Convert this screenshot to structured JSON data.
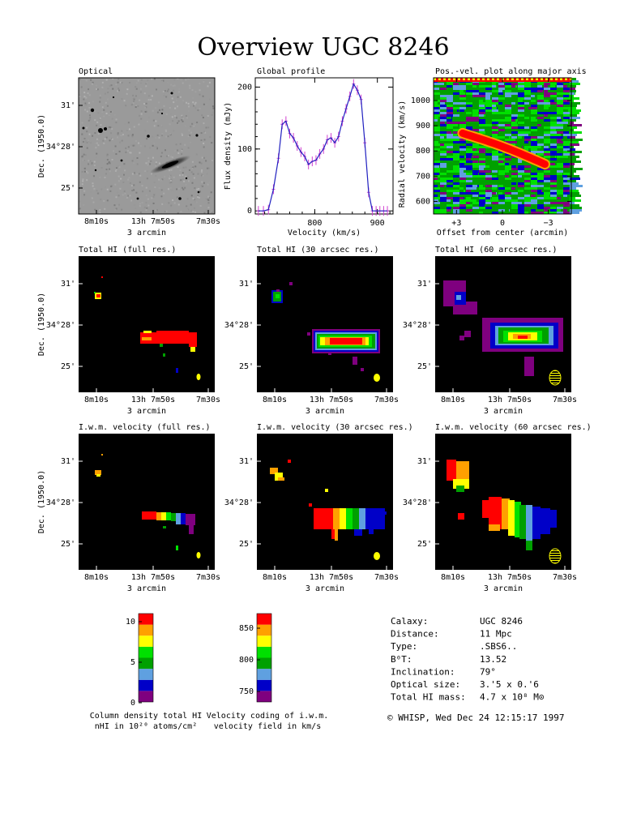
{
  "page": {
    "title": "Overview UGC 8246",
    "footer": "© WHISP, Wed Dec 24 12:15:17 1997"
  },
  "galaxy_info": [
    {
      "key": "Calaxy:",
      "value": "UGC 8246"
    },
    {
      "key": "Distance:",
      "value": "11 Mpc"
    },
    {
      "key": "Type:",
      "value": ".SBS6.."
    },
    {
      "key": "B⁰T:",
      "value": "13.52"
    },
    {
      "key": "Inclination:",
      "value": "79°"
    },
    {
      "key": "Optical size:",
      "value": "3.'5 x 0.'6"
    },
    {
      "key": "Total HI mass:",
      "value": "4.7 x 10⁸ M⊙"
    }
  ],
  "sky_axes": {
    "ylabel": "Dec. (1950.0)",
    "yticks": [
      "31'",
      "34°28'",
      "25'"
    ],
    "xticks": [
      "8m10s",
      "13h 7m50s",
      "7m30s"
    ],
    "xlabel": "3 arcmin"
  },
  "panels": [
    {
      "id": "optical",
      "title": "Optical"
    },
    {
      "id": "hi-full",
      "title": "Total HI (full res.)"
    },
    {
      "id": "hi-30",
      "title": "Total HI (30 arcsec res.)"
    },
    {
      "id": "hi-60",
      "title": "Total HI (60 arcsec res.)"
    },
    {
      "id": "vel-full",
      "title": "I.w.m. velocity (full res.)"
    },
    {
      "id": "vel-30",
      "title": "I.w.m. velocity (30 arcsec res.)"
    },
    {
      "id": "vel-60",
      "title": "I.w.m. velocity (60 arcsec res.)"
    }
  ],
  "colors": {
    "scale": [
      "#7f007f",
      "#0000c8",
      "#5fa0e0",
      "#00a000",
      "#00e000",
      "#ffff00",
      "#ffa000",
      "#ff0000"
    ],
    "profile_line": "#2020c0",
    "profile_err": "#d040d0",
    "map_bg": "#000000"
  },
  "colorbars": [
    {
      "id": "colorbar-column-density",
      "ticks": [
        "10",
        "5",
        "0"
      ],
      "caption1": "Column density total HI",
      "caption2": "nHI in 10²⁰ atoms/cm²"
    },
    {
      "id": "colorbar-velocity",
      "ticks": [
        "850",
        "800",
        "750"
      ],
      "caption1": "Velocity coding of i.w.m.",
      "caption2": "velocity field in km/s"
    }
  ],
  "chart_data": [
    {
      "type": "line",
      "title": "Global profile",
      "xlabel": "Velocity (km/s)",
      "ylabel": "Flux density (mJy)",
      "xlim": [
        705,
        925
      ],
      "ylim": [
        -5,
        215
      ],
      "xticks": [
        800,
        900
      ],
      "yticks": [
        0,
        100,
        200
      ],
      "series": [
        {
          "x": [
            710,
            718,
            726,
            734,
            742,
            748,
            754,
            760,
            766,
            772,
            778,
            784,
            790,
            796,
            802,
            808,
            814,
            820,
            826,
            832,
            838,
            844,
            850,
            856,
            862,
            868,
            874,
            880,
            886,
            892,
            898,
            904,
            910,
            916
          ],
          "y": [
            0,
            0,
            2,
            35,
            85,
            140,
            145,
            125,
            118,
            105,
            95,
            88,
            75,
            80,
            82,
            92,
            100,
            115,
            118,
            110,
            120,
            145,
            165,
            185,
            205,
            195,
            180,
            110,
            30,
            0,
            0,
            0,
            0,
            0
          ]
        }
      ]
    },
    {
      "type": "heatmap",
      "title": "Pos.-vel. plot along major axis",
      "xlabel": "Offset from center (arcmin)",
      "ylabel": "Radial velocity (km/s)",
      "xticks": [
        "+3",
        "0",
        "−3"
      ],
      "yticks": [
        600,
        700,
        800,
        900,
        1000
      ],
      "xlim": [
        4.5,
        -4.5
      ],
      "ylim": [
        550,
        1090
      ]
    }
  ]
}
